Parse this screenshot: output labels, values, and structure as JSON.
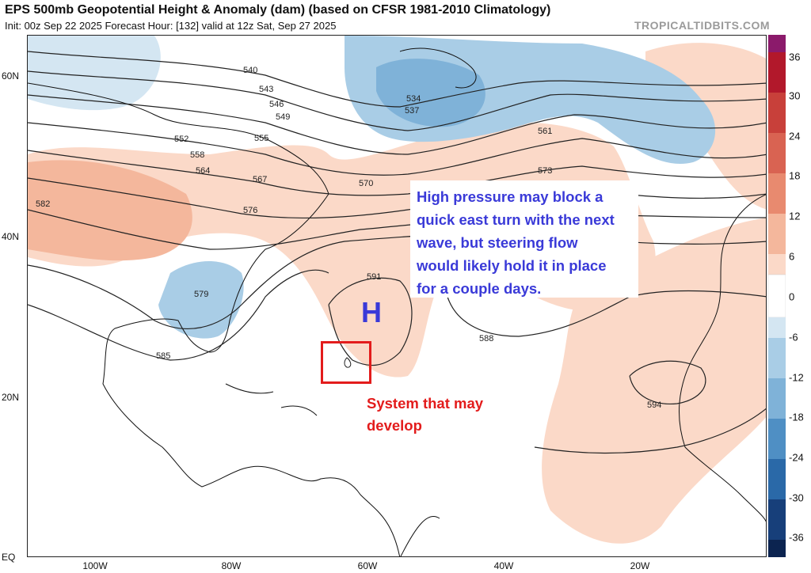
{
  "header": {
    "title": "EPS 500mb Geopotential Height & Anomaly (dam) (based on CFSR 1981-2010 Climatology)",
    "subtitle": "Init: 00z Sep 22 2025   Forecast Hour: [132]   valid at 12z Sat, Sep 27 2025",
    "credit": "TROPICALTIDBITS.COM"
  },
  "axes": {
    "y_labels": [
      "60N",
      "40N",
      "20N",
      "EQ"
    ],
    "x_labels": [
      "100W",
      "80W",
      "60W",
      "40W",
      "20W"
    ]
  },
  "colorbar": {
    "labels": [
      "36",
      "30",
      "24",
      "18",
      "12",
      "6",
      "0",
      "-6",
      "-12",
      "-18",
      "-24",
      "-30",
      "-36"
    ],
    "colors": [
      "#8b1a6b",
      "#b2182b",
      "#c8403a",
      "#d96352",
      "#e88a6f",
      "#f4b79c",
      "#fbd9c8",
      "#ffffff",
      "#d4e6f2",
      "#a9cde6",
      "#7fb2d8",
      "#4f8fc4",
      "#2a69a8",
      "#173f7a",
      "#0c2450"
    ]
  },
  "contours": {
    "labels": [
      "540",
      "543",
      "546",
      "549",
      "552",
      "555",
      "558",
      "561",
      "564",
      "567",
      "570",
      "573",
      "576",
      "579",
      "582",
      "585",
      "588",
      "591",
      "594",
      "534",
      "537"
    ]
  },
  "annotations": {
    "high_label": "H",
    "note_lines": [
      "High pressure may block a",
      "quick east turn with the next",
      "wave, but steering flow",
      "would likely hold it in place",
      "for a couple days."
    ],
    "system_lines": [
      "System that may",
      "develop"
    ],
    "note_color": "#3a3ad8",
    "system_color": "#e31c1c"
  }
}
